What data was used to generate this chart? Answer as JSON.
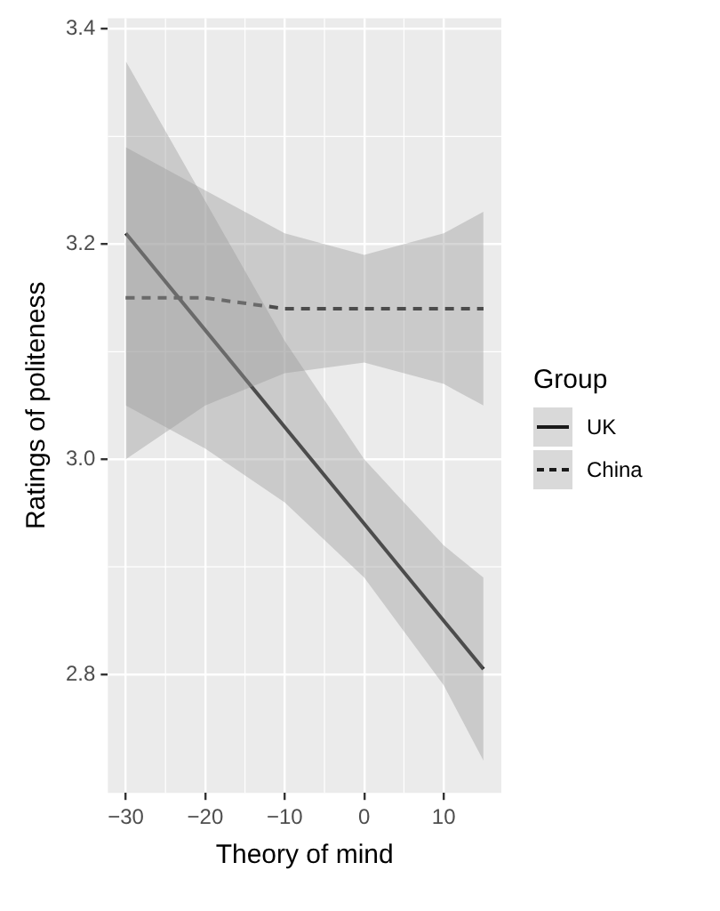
{
  "chart_data": {
    "type": "line",
    "xlabel": "Theory of mind",
    "ylabel": "Ratings of politeness",
    "legend_title": "Group",
    "series": [
      {
        "name": "UK",
        "color": "#1a1a1a",
        "line_style": "solid",
        "x": [
          -30,
          -20,
          -10,
          0,
          10,
          15
        ],
        "values": [
          3.21,
          3.12,
          3.03,
          2.94,
          2.85,
          2.805
        ],
        "lower": [
          3.05,
          3.01,
          2.96,
          2.89,
          2.79,
          2.72
        ],
        "upper": [
          3.37,
          3.24,
          3.11,
          3.0,
          2.92,
          2.89
        ]
      },
      {
        "name": "China",
        "color": "#1a1a1a",
        "line_style": "dashed",
        "x": [
          -30,
          -20,
          -10,
          0,
          10,
          15
        ],
        "values": [
          3.15,
          3.15,
          3.14,
          3.14,
          3.14,
          3.14
        ],
        "lower": [
          3.0,
          3.05,
          3.08,
          3.09,
          3.07,
          3.05
        ],
        "upper": [
          3.29,
          3.25,
          3.21,
          3.19,
          3.21,
          3.23
        ]
      }
    ],
    "xlim": [
      -32.25,
      17.25
    ],
    "xticks": [
      {
        "value": -30,
        "label": "−30"
      },
      {
        "value": -20,
        "label": "−20"
      },
      {
        "value": -10,
        "label": "−10"
      },
      0,
      10
    ],
    "ylim": [
      2.69,
      3.41
    ],
    "yticks": [
      2.8,
      {
        "value": 3.0,
        "label": "3.0"
      },
      3.2,
      3.4
    ],
    "grid": true,
    "legend": "right",
    "marker": "none"
  }
}
